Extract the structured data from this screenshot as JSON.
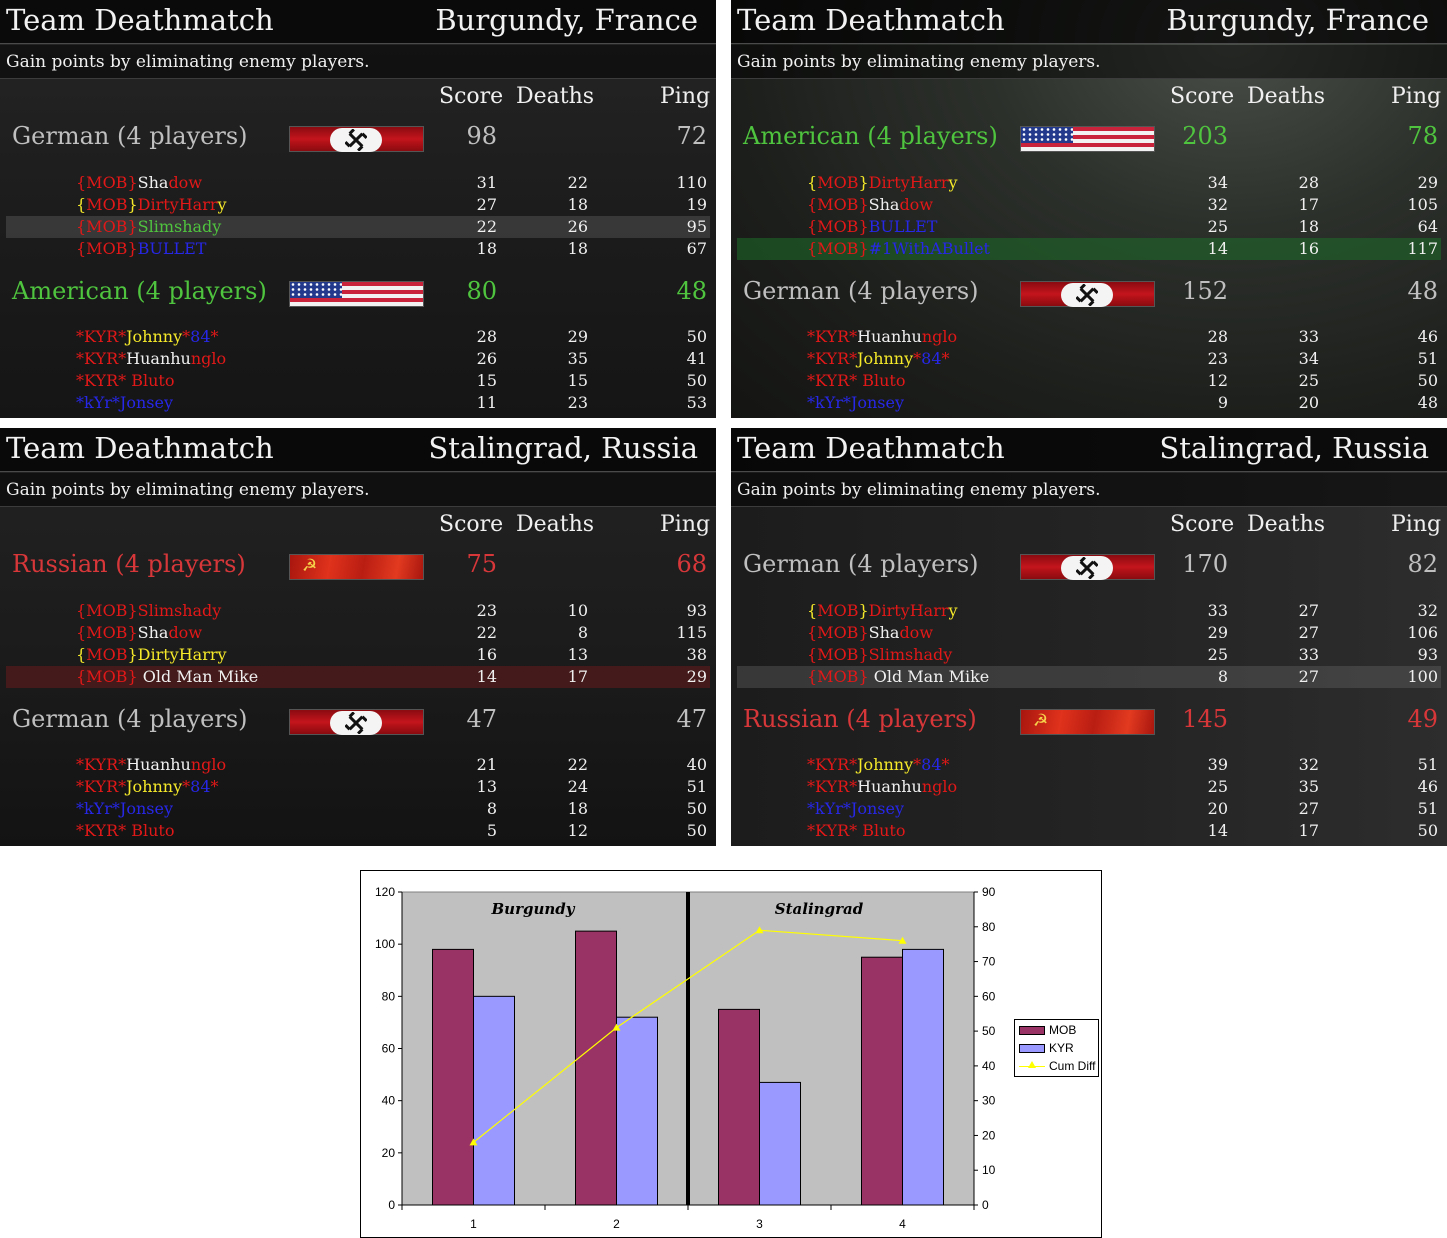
{
  "panels": [
    {
      "mode": "Team Deathmatch",
      "map": "Burgundy, France",
      "description": "Gain points by eliminating enemy players.",
      "columns": {
        "score": "Score",
        "deaths": "Deaths",
        "ping": "Ping"
      },
      "teams": [
        {
          "name": "German (4 players)",
          "flag": "german-flag",
          "color": "#bfbfbf",
          "score": "98",
          "ping": "72",
          "players": [
            {
              "parts": [
                {
                  "t": "{MOB}",
                  "c": "red"
                },
                {
                  "t": "Sha",
                  "c": "white"
                },
                {
                  "t": "dow",
                  "c": "red"
                }
              ],
              "score": "31",
              "deaths": "22",
              "ping": "110"
            },
            {
              "parts": [
                {
                  "t": "{",
                  "c": "yellow"
                },
                {
                  "t": "MOB",
                  "c": "red"
                },
                {
                  "t": "}",
                  "c": "yellow"
                },
                {
                  "t": "DirtyHarr",
                  "c": "red"
                },
                {
                  "t": "y",
                  "c": "yellow"
                }
              ],
              "score": "27",
              "deaths": "18",
              "ping": "19"
            },
            {
              "parts": [
                {
                  "t": "{MOB}",
                  "c": "red"
                },
                {
                  "t": "Slimshady",
                  "c": "green"
                }
              ],
              "score": "22",
              "deaths": "26",
              "ping": "95",
              "hl": "hl"
            },
            {
              "parts": [
                {
                  "t": "{MOB}",
                  "c": "red"
                },
                {
                  "t": "BULLET",
                  "c": "blue"
                }
              ],
              "score": "18",
              "deaths": "18",
              "ping": "67"
            }
          ]
        },
        {
          "name": "American (4 players)",
          "flag": "american-flag",
          "color": "#4fc43e",
          "score": "80",
          "ping": "48",
          "players": [
            {
              "parts": [
                {
                  "t": "*KYR*",
                  "c": "red"
                },
                {
                  "t": "Johnny",
                  "c": "yellow"
                },
                {
                  "t": "*",
                  "c": "red"
                },
                {
                  "t": "84",
                  "c": "blue"
                },
                {
                  "t": "*",
                  "c": "red"
                }
              ],
              "score": "28",
              "deaths": "29",
              "ping": "50"
            },
            {
              "parts": [
                {
                  "t": "*KYR*",
                  "c": "red"
                },
                {
                  "t": "Huanhu",
                  "c": "white"
                },
                {
                  "t": "nglo",
                  "c": "red"
                }
              ],
              "score": "26",
              "deaths": "35",
              "ping": "41"
            },
            {
              "parts": [
                {
                  "t": "*KYR* Bluto",
                  "c": "red"
                }
              ],
              "score": "15",
              "deaths": "15",
              "ping": "50"
            },
            {
              "parts": [
                {
                  "t": "*kYr*Jonsey",
                  "c": "blue"
                }
              ],
              "score": "11",
              "deaths": "23",
              "ping": "53"
            }
          ]
        }
      ]
    },
    {
      "mode": "Team Deathmatch",
      "map": "Burgundy, France",
      "description": "Gain points by eliminating enemy players.",
      "columns": {
        "score": "Score",
        "deaths": "Deaths",
        "ping": "Ping"
      },
      "teams": [
        {
          "name": "American (4 players)",
          "flag": "american-flag",
          "color": "#4fc43e",
          "score": "203",
          "ping": "78",
          "players": [
            {
              "parts": [
                {
                  "t": "{",
                  "c": "yellow"
                },
                {
                  "t": "MOB",
                  "c": "red"
                },
                {
                  "t": "}",
                  "c": "yellow"
                },
                {
                  "t": "DirtyHarr",
                  "c": "red"
                },
                {
                  "t": "y",
                  "c": "yellow"
                }
              ],
              "score": "34",
              "deaths": "28",
              "ping": "29"
            },
            {
              "parts": [
                {
                  "t": "{MOB}",
                  "c": "red"
                },
                {
                  "t": "Sha",
                  "c": "white"
                },
                {
                  "t": "dow",
                  "c": "red"
                }
              ],
              "score": "32",
              "deaths": "17",
              "ping": "105"
            },
            {
              "parts": [
                {
                  "t": "{MOB}",
                  "c": "red"
                },
                {
                  "t": "BULLET",
                  "c": "blue"
                }
              ],
              "score": "25",
              "deaths": "18",
              "ping": "64"
            },
            {
              "parts": [
                {
                  "t": "{MOB}",
                  "c": "red"
                },
                {
                  "t": "#1WithABullet",
                  "c": "blue"
                }
              ],
              "score": "14",
              "deaths": "16",
              "ping": "117",
              "hl": "hl-g"
            }
          ]
        },
        {
          "name": "German (4 players)",
          "flag": "german-flag",
          "color": "#bfbfbf",
          "score": "152",
          "ping": "48",
          "players": [
            {
              "parts": [
                {
                  "t": "*KYR*",
                  "c": "red"
                },
                {
                  "t": "Huanhu",
                  "c": "white"
                },
                {
                  "t": "nglo",
                  "c": "red"
                }
              ],
              "score": "28",
              "deaths": "33",
              "ping": "46"
            },
            {
              "parts": [
                {
                  "t": "*KYR*",
                  "c": "red"
                },
                {
                  "t": "Johnny",
                  "c": "yellow"
                },
                {
                  "t": "*",
                  "c": "red"
                },
                {
                  "t": "84",
                  "c": "blue"
                },
                {
                  "t": "*",
                  "c": "red"
                }
              ],
              "score": "23",
              "deaths": "34",
              "ping": "51"
            },
            {
              "parts": [
                {
                  "t": "*KYR* Bluto",
                  "c": "red"
                }
              ],
              "score": "12",
              "deaths": "25",
              "ping": "50"
            },
            {
              "parts": [
                {
                  "t": "*kYr*Jonsey",
                  "c": "blue"
                }
              ],
              "score": "9",
              "deaths": "20",
              "ping": "48"
            }
          ]
        }
      ]
    },
    {
      "mode": "Team Deathmatch",
      "map": "Stalingrad, Russia",
      "description": "Gain points by eliminating enemy players.",
      "columns": {
        "score": "Score",
        "deaths": "Deaths",
        "ping": "Ping"
      },
      "teams": [
        {
          "name": "Russian (4 players)",
          "flag": "soviet-flag",
          "color": "#d8373a",
          "score": "75",
          "ping": "68",
          "players": [
            {
              "parts": [
                {
                  "t": "{MOB}Slimshady",
                  "c": "red"
                }
              ],
              "score": "23",
              "deaths": "10",
              "ping": "93"
            },
            {
              "parts": [
                {
                  "t": "{MOB}",
                  "c": "red"
                },
                {
                  "t": "Sha",
                  "c": "white"
                },
                {
                  "t": "dow",
                  "c": "red"
                }
              ],
              "score": "22",
              "deaths": "8",
              "ping": "115"
            },
            {
              "parts": [
                {
                  "t": "{",
                  "c": "yellow"
                },
                {
                  "t": "MOB",
                  "c": "red"
                },
                {
                  "t": "}",
                  "c": "yellow"
                },
                {
                  "t": "DirtyHarry",
                  "c": "yellow"
                }
              ],
              "score": "16",
              "deaths": "13",
              "ping": "38"
            },
            {
              "parts": [
                {
                  "t": "{MOB}",
                  "c": "red"
                },
                {
                  "t": " Old Man Mike",
                  "c": "white"
                }
              ],
              "score": "14",
              "deaths": "17",
              "ping": "29",
              "hl": "hl-r"
            }
          ]
        },
        {
          "name": "German (4 players)",
          "flag": "german-flag",
          "color": "#bfbfbf",
          "score": "47",
          "ping": "47",
          "players": [
            {
              "parts": [
                {
                  "t": "*KYR*",
                  "c": "red"
                },
                {
                  "t": "Huanhu",
                  "c": "white"
                },
                {
                  "t": "nglo",
                  "c": "red"
                }
              ],
              "score": "21",
              "deaths": "22",
              "ping": "40"
            },
            {
              "parts": [
                {
                  "t": "*KYR*",
                  "c": "red"
                },
                {
                  "t": "Johnny",
                  "c": "yellow"
                },
                {
                  "t": "*",
                  "c": "red"
                },
                {
                  "t": "84",
                  "c": "blue"
                },
                {
                  "t": "*",
                  "c": "red"
                }
              ],
              "score": "13",
              "deaths": "24",
              "ping": "51"
            },
            {
              "parts": [
                {
                  "t": "*kYr*Jonsey",
                  "c": "blue"
                }
              ],
              "score": "8",
              "deaths": "18",
              "ping": "50"
            },
            {
              "parts": [
                {
                  "t": "*KYR* Bluto",
                  "c": "red"
                }
              ],
              "score": "5",
              "deaths": "12",
              "ping": "50"
            }
          ]
        }
      ]
    },
    {
      "mode": "Team Deathmatch",
      "map": "Stalingrad, Russia",
      "description": "Gain points by eliminating enemy players.",
      "columns": {
        "score": "Score",
        "deaths": "Deaths",
        "ping": "Ping"
      },
      "teams": [
        {
          "name": "German (4 players)",
          "flag": "german-flag",
          "color": "#bfbfbf",
          "score": "170",
          "ping": "82",
          "players": [
            {
              "parts": [
                {
                  "t": "{",
                  "c": "yellow"
                },
                {
                  "t": "MOB",
                  "c": "red"
                },
                {
                  "t": "}",
                  "c": "yellow"
                },
                {
                  "t": "DirtyHarr",
                  "c": "red"
                },
                {
                  "t": "y",
                  "c": "yellow"
                }
              ],
              "score": "33",
              "deaths": "27",
              "ping": "32"
            },
            {
              "parts": [
                {
                  "t": "{MOB}",
                  "c": "red"
                },
                {
                  "t": "Sha",
                  "c": "white"
                },
                {
                  "t": "dow",
                  "c": "red"
                }
              ],
              "score": "29",
              "deaths": "27",
              "ping": "106"
            },
            {
              "parts": [
                {
                  "t": "{MOB}Slimshady",
                  "c": "red"
                }
              ],
              "score": "25",
              "deaths": "33",
              "ping": "93"
            },
            {
              "parts": [
                {
                  "t": "{MOB}",
                  "c": "red"
                },
                {
                  "t": " Old Man Mike",
                  "c": "white"
                }
              ],
              "score": "8",
              "deaths": "27",
              "ping": "100",
              "hl": "hl"
            }
          ]
        },
        {
          "name": "Russian (4 players)",
          "flag": "soviet-flag",
          "color": "#d8373a",
          "score": "145",
          "ping": "49",
          "players": [
            {
              "parts": [
                {
                  "t": "*KYR*",
                  "c": "red"
                },
                {
                  "t": "Johnny",
                  "c": "yellow"
                },
                {
                  "t": "*",
                  "c": "red"
                },
                {
                  "t": "84",
                  "c": "blue"
                },
                {
                  "t": "*",
                  "c": "red"
                }
              ],
              "score": "39",
              "deaths": "32",
              "ping": "51"
            },
            {
              "parts": [
                {
                  "t": "*KYR*",
                  "c": "red"
                },
                {
                  "t": "Huanhu",
                  "c": "white"
                },
                {
                  "t": "nglo",
                  "c": "red"
                }
              ],
              "score": "25",
              "deaths": "35",
              "ping": "46"
            },
            {
              "parts": [
                {
                  "t": "*kYr*Jonsey",
                  "c": "blue"
                }
              ],
              "score": "20",
              "deaths": "27",
              "ping": "51"
            },
            {
              "parts": [
                {
                  "t": "*KYR* Bluto",
                  "c": "red"
                }
              ],
              "score": "14",
              "deaths": "17",
              "ping": "50"
            }
          ]
        }
      ]
    }
  ],
  "chart_data": {
    "type": "bar",
    "categories": [
      "1",
      "2",
      "3",
      "4"
    ],
    "series": [
      {
        "name": "MOB",
        "type": "bar",
        "axis": "left",
        "color": "#993366",
        "values": [
          98,
          105,
          75,
          95
        ]
      },
      {
        "name": "KYR",
        "type": "bar",
        "axis": "left",
        "color": "#9999ff",
        "values": [
          80,
          72,
          47,
          98
        ]
      },
      {
        "name": "Cum Diff",
        "type": "line",
        "axis": "right",
        "color": "#ffff00",
        "marker": "triangle",
        "values": [
          18,
          51,
          79,
          76
        ]
      }
    ],
    "ylim_left": [
      0,
      120
    ],
    "yticks_left": [
      0,
      20,
      40,
      60,
      80,
      100,
      120
    ],
    "ylim_right": [
      0,
      90
    ],
    "yticks_right": [
      0,
      10,
      20,
      30,
      40,
      50,
      60,
      70,
      80,
      90
    ],
    "group_labels": [
      "Burgundy",
      "Stalingrad"
    ],
    "plot_background": "#c0c0c0",
    "grid": false,
    "legend": "right"
  }
}
